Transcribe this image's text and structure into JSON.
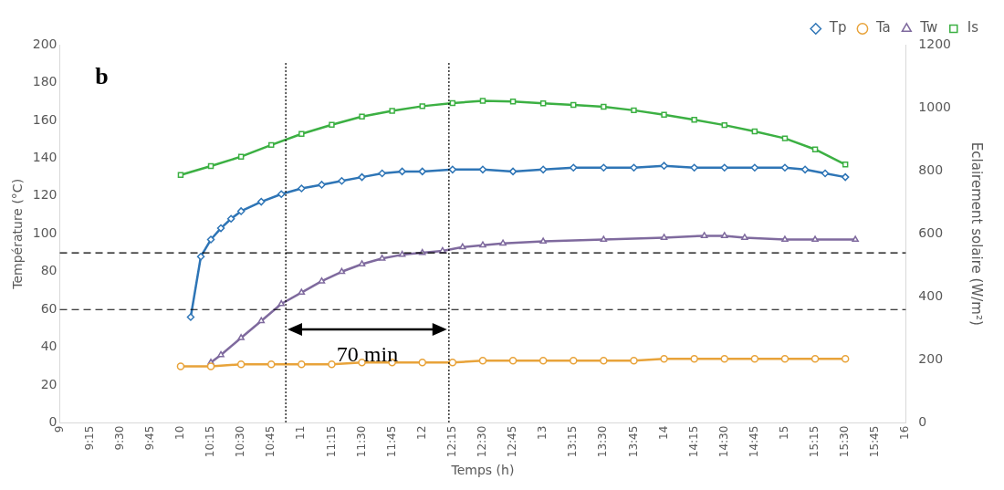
{
  "chart_data": {
    "type": "line",
    "xlabel": "Temps (h)",
    "ylabel": "Température (°C)",
    "y2label": "Eclairement solaire (W/m²)",
    "xlim": [
      9,
      16
    ],
    "ylim": [
      0,
      200
    ],
    "y2lim": [
      0,
      1200
    ],
    "xticks": [
      9,
      {
        "value": 9.25,
        "label": "9:15"
      },
      {
        "value": 9.5,
        "label": "9:30"
      },
      {
        "value": 9.75,
        "label": "9:45"
      },
      10,
      {
        "value": 10.25,
        "label": "10:15"
      },
      {
        "value": 10.5,
        "label": "10:30"
      },
      {
        "value": 10.75,
        "label": "10:45"
      },
      11,
      {
        "value": 11.25,
        "label": "11:15"
      },
      {
        "value": 11.5,
        "label": "11:30"
      },
      {
        "value": 11.75,
        "label": "11:45"
      },
      12,
      {
        "value": 12.25,
        "label": "12:15"
      },
      {
        "value": 12.5,
        "label": "12:30"
      },
      {
        "value": 12.75,
        "label": "12:45"
      },
      13,
      {
        "value": 13.25,
        "label": "13:15"
      },
      {
        "value": 13.5,
        "label": "13:30"
      },
      {
        "value": 13.75,
        "label": "13:45"
      },
      14,
      {
        "value": 14.25,
        "label": "14:15"
      },
      {
        "value": 14.5,
        "label": "14:30"
      },
      {
        "value": 14.75,
        "label": "14:45"
      },
      15,
      {
        "value": 15.25,
        "label": "15:15"
      },
      {
        "value": 15.5,
        "label": "15:30"
      },
      {
        "value": 15.75,
        "label": "15:45"
      },
      16
    ],
    "yticks": [
      0,
      20,
      40,
      60,
      80,
      100,
      120,
      140,
      160,
      180,
      200
    ],
    "y2ticks": [
      0,
      200,
      400,
      600,
      800,
      1000,
      1200
    ],
    "grid": false,
    "legend": "top right",
    "line_style": "solid",
    "series": [
      {
        "name": "Tp",
        "color": "#2e75b6",
        "marker": "diamond",
        "x": [
          10.083,
          10.167,
          10.25,
          10.333,
          10.417,
          10.5,
          10.667,
          10.833,
          11,
          11.167,
          11.333,
          11.5,
          11.667,
          11.833,
          12,
          12.25,
          12.5,
          12.75,
          13,
          13.25,
          13.5,
          13.75,
          14,
          14.25,
          14.5,
          14.75,
          15,
          15.167,
          15.333,
          15.5
        ],
        "values": [
          56,
          88,
          97,
          103,
          108,
          112,
          117,
          121,
          124,
          126,
          128,
          130,
          132,
          133,
          133,
          134,
          134,
          133,
          134,
          135,
          135,
          135,
          136,
          135,
          135,
          135,
          135,
          134,
          132,
          130
        ]
      },
      {
        "name": "Ta",
        "color": "#e8a33a",
        "marker": "circle",
        "x": [
          10,
          10.25,
          10.5,
          10.75,
          11,
          11.25,
          11.5,
          11.75,
          12,
          12.25,
          12.5,
          12.75,
          13,
          13.25,
          13.5,
          13.75,
          14,
          14.25,
          14.5,
          14.75,
          15,
          15.25,
          15.5
        ],
        "values": [
          30,
          30,
          31,
          31,
          31,
          31,
          32,
          32,
          32,
          32,
          33,
          33,
          33,
          33,
          33,
          33,
          34,
          34,
          34,
          34,
          34,
          34,
          34
        ]
      },
      {
        "name": "Tw",
        "color": "#7f6a9e",
        "marker": "triangle",
        "x": [
          10.25,
          10.333,
          10.5,
          10.667,
          10.833,
          11,
          11.167,
          11.333,
          11.5,
          11.667,
          11.833,
          12,
          12.167,
          12.333,
          12.5,
          12.667,
          13,
          13.5,
          14,
          14.333,
          14.5,
          14.667,
          15,
          15.25,
          15.583
        ],
        "values": [
          32,
          36,
          45,
          54,
          63,
          69,
          75,
          80,
          84,
          87,
          89,
          90,
          91,
          93,
          94,
          95,
          96,
          97,
          98,
          99,
          99,
          98,
          97,
          97,
          97
        ]
      },
      {
        "name": "Is",
        "color": "#3cb043",
        "marker": "square",
        "axis": "y2",
        "x": [
          10,
          10.25,
          10.5,
          10.75,
          11,
          11.25,
          11.5,
          11.75,
          12,
          12.25,
          12.5,
          12.75,
          13,
          13.25,
          13.5,
          13.75,
          14,
          14.25,
          14.5,
          14.75,
          15,
          15.25,
          15.5
        ],
        "values": [
          787,
          815,
          845,
          882,
          917,
          946,
          972,
          990,
          1005,
          1015,
          1022,
          1020,
          1014,
          1009,
          1003,
          992,
          978,
          962,
          945,
          925,
          903,
          868,
          820
        ]
      }
    ],
    "ref_lines": [
      {
        "axis": "y",
        "value": 60,
        "line_style": "dashed",
        "color": "#000000"
      },
      {
        "axis": "y",
        "value": 90,
        "line_style": "dashed",
        "color": "#000000"
      },
      {
        "axis": "x",
        "value": 10.87,
        "line_style": "dotted",
        "color": "#000000"
      },
      {
        "axis": "x",
        "value": 12.22,
        "line_style": "dotted",
        "color": "#000000"
      }
    ],
    "annotations": [
      "b",
      "70 min"
    ]
  }
}
